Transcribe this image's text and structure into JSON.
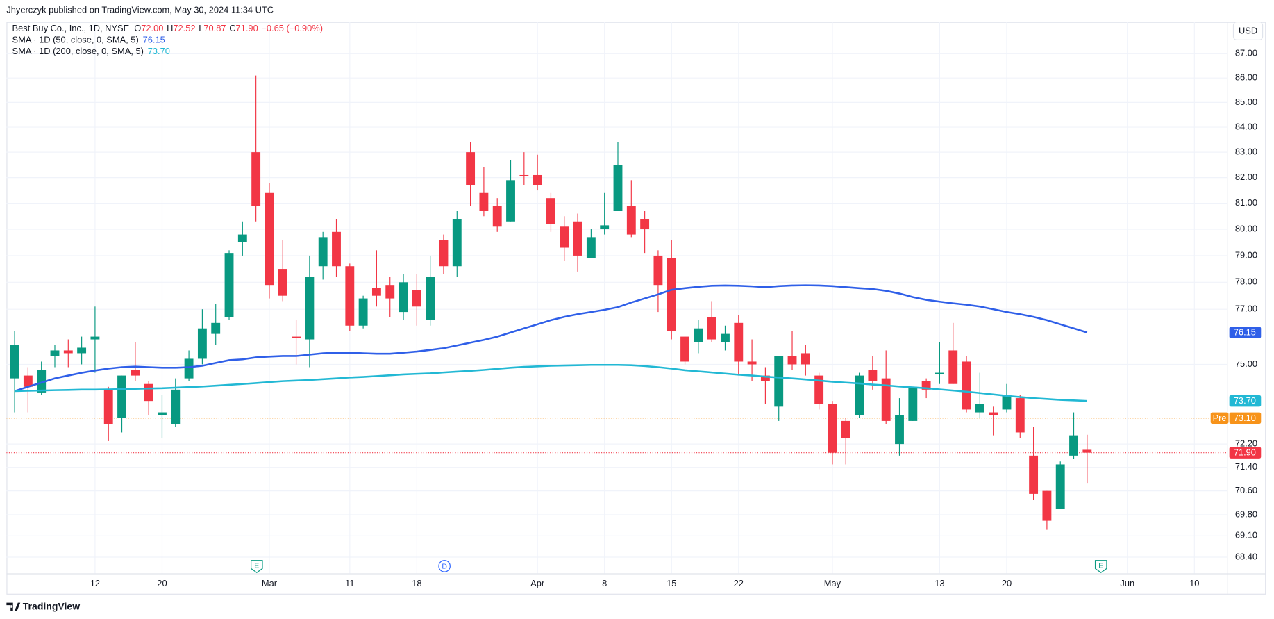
{
  "header": {
    "attribution": "Jhyerczyk published on TradingView.com, May 30, 2024 11:34 UTC",
    "currency": "USD",
    "brand": "TradingView"
  },
  "events": [
    {
      "label": "E"
    },
    {
      "label": "D"
    },
    {
      "label": "E"
    }
  ],
  "chart_data": {
    "type": "candlestick",
    "symbol": "Best Buy Co., Inc., 1D, NYSE",
    "ohlc_legend": [
      {
        "key": "O",
        "value": "72.00"
      },
      {
        "key": "H",
        "value": "72.52"
      },
      {
        "key": "L",
        "value": "70.87"
      },
      {
        "key": "C",
        "value": "71.90"
      }
    ],
    "change": "−0.65 (−0.90%)",
    "up_color": "#089981",
    "down_color": "#f23645",
    "log_scale": true,
    "grid": true,
    "categories": [
      null,
      null,
      null,
      null,
      null,
      null,
      "12",
      null,
      null,
      null,
      null,
      "20",
      null,
      null,
      null,
      null,
      null,
      null,
      null,
      "Mar",
      null,
      null,
      null,
      null,
      null,
      "11",
      null,
      null,
      null,
      null,
      "18",
      null,
      null,
      null,
      null,
      null,
      null,
      null,
      null,
      "Apr",
      null,
      null,
      null,
      null,
      "8",
      null,
      null,
      null,
      null,
      "15",
      null,
      null,
      null,
      null,
      "22",
      null,
      null,
      null,
      null,
      null,
      null,
      "May",
      null,
      null,
      null,
      null,
      null,
      null,
      null,
      "13",
      null,
      null,
      null,
      null,
      "20",
      null,
      null,
      null,
      null,
      null,
      null,
      null,
      null,
      "Jun",
      null,
      null,
      null,
      null,
      "10"
    ],
    "open": [
      74.5,
      74.6,
      74.0,
      75.3,
      75.5,
      75.4,
      75.9,
      74.1,
      73.1,
      74.8,
      74.3,
      73.2,
      72.9,
      74.5,
      75.2,
      76.1,
      76.7,
      79.5,
      83.0,
      81.4,
      78.5,
      76.0,
      75.9,
      78.6,
      79.9,
      78.6,
      76.4,
      77.8,
      77.9,
      76.9,
      77.7,
      76.6,
      79.6,
      78.6,
      83.0,
      81.4,
      80.9,
      80.3,
      82.1,
      82.1,
      81.2,
      80.1,
      80.3,
      78.9,
      80.0,
      80.7,
      80.9,
      80.4,
      79.0,
      78.9,
      76.0,
      75.8,
      76.7,
      75.8,
      76.5,
      75.1,
      74.6,
      73.5,
      75.3,
      75.4,
      74.6,
      73.6,
      73.0,
      73.2,
      74.8,
      74.5,
      72.2,
      73.0,
      74.4,
      74.65,
      75.5,
      75.1,
      73.3,
      73.3,
      73.4,
      73.8,
      71.8,
      70.6,
      70.0,
      71.8,
      72.0,
      null,
      null,
      null,
      null,
      null,
      null,
      null,
      null
    ],
    "high": [
      76.2,
      74.9,
      75.1,
      75.7,
      75.9,
      76.0,
      77.1,
      74.2,
      74.6,
      75.8,
      74.4,
      73.9,
      74.5,
      75.5,
      77.0,
      77.2,
      79.2,
      80.3,
      86.1,
      81.8,
      79.6,
      76.6,
      79.0,
      79.9,
      80.4,
      78.7,
      77.5,
      79.2,
      78.2,
      78.3,
      78.3,
      79.0,
      79.8,
      80.7,
      83.4,
      82.4,
      81.2,
      82.7,
      83.0,
      82.9,
      81.4,
      80.5,
      80.6,
      80.0,
      81.4,
      83.4,
      81.9,
      80.7,
      79.2,
      79.6,
      76.0,
      76.6,
      77.3,
      76.4,
      76.8,
      75.9,
      74.9,
      75.3,
      76.2,
      75.7,
      74.7,
      73.7,
      73.1,
      74.7,
      75.3,
      75.5,
      73.8,
      74.2,
      74.5,
      75.8,
      76.5,
      75.3,
      74.7,
      73.5,
      74.3,
      73.9,
      72.8,
      70.6,
      71.6,
      73.3,
      72.52,
      null,
      null,
      null,
      null,
      null,
      null,
      null,
      null
    ],
    "low": [
      73.3,
      73.3,
      73.9,
      74.9,
      74.9,
      75.0,
      74.7,
      72.3,
      72.6,
      74.4,
      73.2,
      72.4,
      72.8,
      74.4,
      75.0,
      75.7,
      76.6,
      79.0,
      80.3,
      77.4,
      77.3,
      75.0,
      74.9,
      78.1,
      78.2,
      76.2,
      76.3,
      77.1,
      76.7,
      76.6,
      76.4,
      76.4,
      78.3,
      78.2,
      80.9,
      80.5,
      79.9,
      80.3,
      81.7,
      81.5,
      79.9,
      78.8,
      78.4,
      78.9,
      79.8,
      80.7,
      79.7,
      79.1,
      76.9,
      75.9,
      75.0,
      75.4,
      75.8,
      75.5,
      74.6,
      74.4,
      73.6,
      73.0,
      74.8,
      74.6,
      73.4,
      71.5,
      71.5,
      73.1,
      74.1,
      72.9,
      71.8,
      73.0,
      73.8,
      74.3,
      74.3,
      73.3,
      73.1,
      72.5,
      73.3,
      72.4,
      70.3,
      69.3,
      70.0,
      71.7,
      70.87,
      null,
      null,
      null,
      null,
      null,
      null,
      null,
      null
    ],
    "close": [
      75.7,
      74.2,
      74.8,
      75.5,
      75.4,
      75.6,
      76.0,
      72.9,
      74.6,
      74.6,
      73.7,
      73.3,
      74.1,
      75.2,
      76.3,
      76.5,
      79.1,
      79.8,
      80.9,
      77.9,
      77.5,
      75.95,
      78.2,
      79.7,
      78.6,
      76.4,
      77.4,
      77.5,
      77.4,
      78.0,
      77.1,
      78.2,
      78.6,
      80.4,
      81.7,
      80.7,
      80.1,
      81.9,
      82.05,
      81.7,
      80.2,
      79.3,
      79.0,
      79.7,
      80.15,
      82.5,
      79.8,
      80.0,
      77.9,
      76.2,
      75.1,
      76.3,
      75.9,
      76.1,
      75.1,
      75.0,
      74.4,
      75.3,
      75.0,
      75.0,
      73.6,
      71.9,
      72.4,
      74.6,
      74.4,
      73.0,
      73.2,
      74.2,
      74.1,
      74.7,
      74.3,
      73.4,
      73.6,
      73.2,
      73.9,
      72.6,
      70.5,
      69.6,
      71.5,
      72.5,
      71.9,
      null,
      null,
      null,
      null,
      null,
      null,
      null,
      null
    ],
    "series": [
      {
        "name": "SMA · 1D (50, close, 0, SMA, 5)",
        "color": "#2f5fe8",
        "value_label": "76.15",
        "values": [
          74.05,
          74.2,
          74.35,
          74.5,
          74.6,
          74.7,
          74.78,
          74.85,
          74.9,
          74.92,
          74.9,
          74.88,
          74.88,
          74.9,
          74.95,
          75.05,
          75.15,
          75.18,
          75.25,
          75.28,
          75.3,
          75.3,
          75.35,
          75.4,
          75.42,
          75.42,
          75.4,
          75.38,
          75.38,
          75.42,
          75.46,
          75.52,
          75.58,
          75.68,
          75.78,
          75.88,
          76.0,
          76.15,
          76.3,
          76.45,
          76.6,
          76.72,
          76.82,
          76.9,
          76.98,
          77.08,
          77.25,
          77.4,
          77.55,
          77.72,
          77.78,
          77.83,
          77.87,
          77.88,
          77.87,
          77.85,
          77.82,
          77.86,
          77.88,
          77.89,
          77.88,
          77.86,
          77.82,
          77.78,
          77.75,
          77.68,
          77.58,
          77.45,
          77.35,
          77.28,
          77.22,
          77.17,
          77.1,
          77.0,
          76.9,
          76.82,
          76.72,
          76.6,
          76.45,
          76.3,
          76.15,
          null,
          null,
          null,
          null,
          null,
          null,
          null,
          null
        ]
      },
      {
        "name": "SMA · 1D (200, close, 0, SMA, 5)",
        "color": "#22b8d4",
        "value_label": "73.70",
        "values": [
          74.05,
          74.06,
          74.07,
          74.08,
          74.09,
          74.1,
          74.1,
          74.11,
          74.12,
          74.13,
          74.14,
          74.15,
          74.17,
          74.19,
          74.21,
          74.24,
          74.27,
          74.3,
          74.33,
          74.37,
          74.4,
          74.42,
          74.44,
          74.47,
          74.5,
          74.53,
          74.55,
          74.58,
          74.61,
          74.64,
          74.66,
          74.68,
          74.71,
          74.74,
          74.77,
          74.8,
          74.84,
          74.88,
          74.91,
          74.93,
          74.95,
          74.96,
          74.97,
          74.98,
          74.98,
          74.98,
          74.97,
          74.94,
          74.9,
          74.85,
          74.79,
          74.75,
          74.71,
          74.67,
          74.63,
          74.6,
          74.56,
          74.53,
          74.5,
          74.46,
          74.42,
          74.38,
          74.35,
          74.32,
          74.28,
          74.25,
          74.21,
          74.18,
          74.15,
          74.11,
          74.07,
          74.03,
          73.98,
          73.93,
          73.88,
          73.84,
          73.8,
          73.77,
          73.74,
          73.72,
          73.7,
          null,
          null,
          null,
          null,
          null,
          null,
          null,
          null
        ]
      }
    ],
    "price_lines": [
      {
        "tag": "Pre",
        "value": 73.1,
        "value_label": "73.10",
        "color": "#f7931a"
      },
      {
        "value": 71.9,
        "value_label": "71.90",
        "color": "#f23645"
      }
    ],
    "ylim": [
      67.87,
      88.33
    ],
    "yticks": [
      {
        "value": 87,
        "label": "87.00"
      },
      {
        "value": 86,
        "label": "86.00"
      },
      {
        "value": 85,
        "label": "85.00"
      },
      {
        "value": 84,
        "label": "84.00"
      },
      {
        "value": 83,
        "label": "83.00"
      },
      {
        "value": 82,
        "label": "82.00"
      },
      {
        "value": 81,
        "label": "81.00"
      },
      {
        "value": 80,
        "label": "80.00"
      },
      {
        "value": 79,
        "label": "79.00"
      },
      {
        "value": 78,
        "label": "78.00"
      },
      {
        "value": 77,
        "label": "77.00"
      },
      {
        "value": 75,
        "label": "75.00"
      },
      {
        "value": 72.2,
        "label": "72.20"
      },
      {
        "value": 71.4,
        "label": "71.40"
      },
      {
        "value": 70.6,
        "label": "70.60"
      },
      {
        "value": 69.8,
        "label": "69.80"
      },
      {
        "value": 69.1,
        "label": "69.10"
      },
      {
        "value": 68.4,
        "label": "68.40"
      }
    ]
  }
}
